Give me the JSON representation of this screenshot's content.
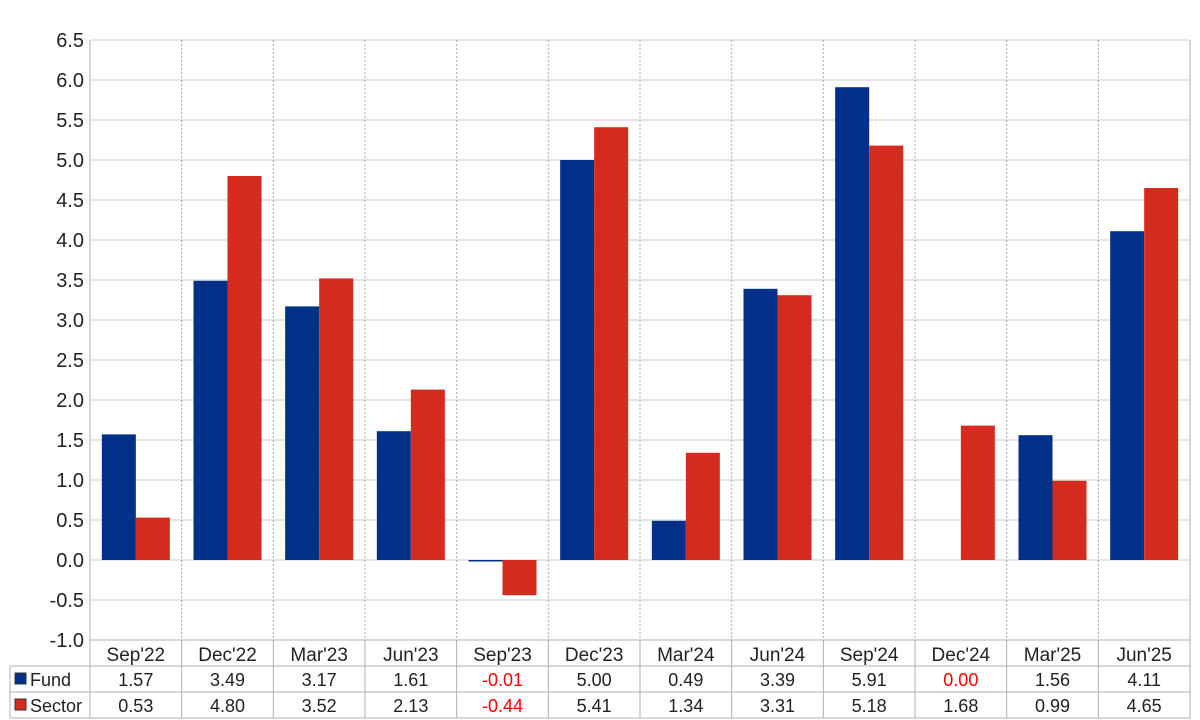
{
  "chart_data": {
    "type": "bar",
    "categories": [
      "Sep'22",
      "Dec'22",
      "Mar'23",
      "Jun'23",
      "Sep'23",
      "Dec'23",
      "Mar'24",
      "Jun'24",
      "Sep'24",
      "Dec'24",
      "Mar'25",
      "Jun'25"
    ],
    "series": [
      {
        "name": "Fund",
        "values": [
          1.57,
          3.49,
          3.17,
          1.61,
          -0.01,
          5.0,
          0.49,
          3.39,
          5.91,
          0.0,
          1.56,
          4.11
        ],
        "color": "#003087"
      },
      {
        "name": "Sector",
        "values": [
          0.53,
          4.8,
          3.52,
          2.13,
          -0.44,
          5.41,
          1.34,
          3.31,
          5.18,
          1.68,
          0.99,
          4.65
        ],
        "color": "#d52b1e"
      }
    ],
    "table_rows": [
      {
        "label": "Fund",
        "cells": [
          "1.57",
          "3.49",
          "3.17",
          "1.61",
          "-0.01",
          "5.00",
          "0.49",
          "3.39",
          "5.91",
          "0.00",
          "1.56",
          "4.11"
        ]
      },
      {
        "label": "Sector",
        "cells": [
          "0.53",
          "4.80",
          "3.52",
          "2.13",
          "-0.44",
          "5.41",
          "1.34",
          "3.31",
          "5.18",
          "1.68",
          "0.99",
          "4.65"
        ]
      }
    ],
    "yticks": [
      "6.5",
      "6.0",
      "5.5",
      "5.0",
      "4.5",
      "4.0",
      "3.5",
      "3.0",
      "2.5",
      "2.0",
      "1.5",
      "1.0",
      "0.5",
      "0.0",
      "-0.5",
      "-1.0"
    ],
    "ylim": [
      -1.0,
      6.5
    ],
    "grid": true,
    "negative_value_color": "#ff0000",
    "title": "",
    "xlabel": "",
    "ylabel": ""
  }
}
